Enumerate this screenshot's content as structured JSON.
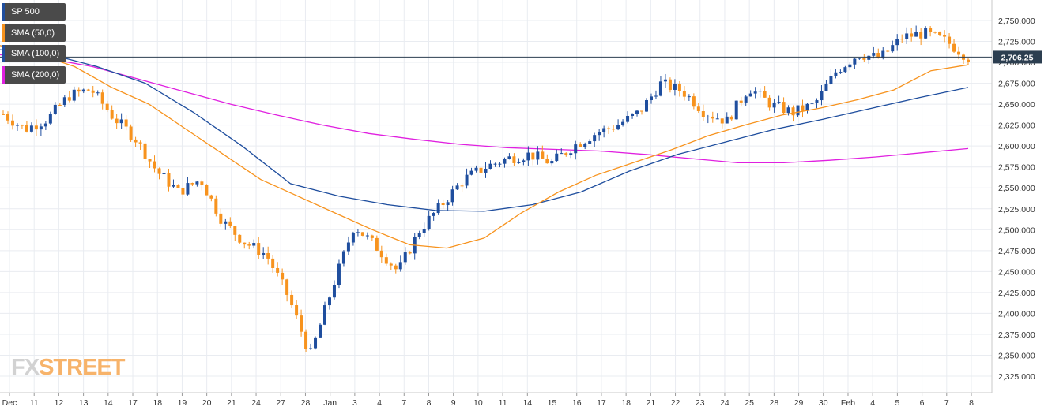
{
  "legend": [
    {
      "label": "SP 500",
      "color": "#1f4e9e"
    },
    {
      "label": "SMA (50,0)",
      "color": "#f7931e"
    },
    {
      "label": "SMA (100,0)",
      "color": "#1f4e9e"
    },
    {
      "label": "SMA (200,0)",
      "color": "#e020e0"
    }
  ],
  "watermark": {
    "part1": "FX",
    "part2": "STREET"
  },
  "colors": {
    "up": "#1f4e9e",
    "down": "#f7931e",
    "sma50": "#f7931e",
    "sma100": "#1f4e9e",
    "sma200": "#e020e0",
    "grid": "#e9ecf1",
    "axis_text": "#333333",
    "price_tag_bg": "#2c3e50"
  },
  "chart_data": {
    "type": "candlestick",
    "title": "SP 500",
    "ylim": [
      2315,
      2760
    ],
    "y_ticks": [
      "2,325.000",
      "2,350.000",
      "2,375.000",
      "2,400.000",
      "2,425.000",
      "2,450.000",
      "2,475.000",
      "2,500.000",
      "2,525.000",
      "2,550.000",
      "2,575.000",
      "2,600.000",
      "2,625.000",
      "2,650.000",
      "2,675.000",
      "2,700.000",
      "2,725.000",
      "2,750.000"
    ],
    "x_ticks": [
      "Dec",
      "11",
      "12",
      "13",
      "14",
      "17",
      "18",
      "19",
      "20",
      "21",
      "24",
      "27",
      "28",
      "Jan",
      "3",
      "4",
      "7",
      "8",
      "9",
      "10",
      "11",
      "14",
      "15",
      "16",
      "17",
      "18",
      "21",
      "22",
      "23",
      "24",
      "25",
      "28",
      "29",
      "30",
      "Feb",
      "4",
      "5",
      "6",
      "7",
      "8"
    ],
    "current_price": {
      "label": "2,706.25",
      "value": 2706.25
    },
    "candle_daily_closes": [
      2638,
      2620,
      2632,
      2660,
      2668,
      2635,
      2610,
      2570,
      2545,
      2560,
      2510,
      2485,
      2470,
      2420,
      2350,
      2430,
      2505,
      2480,
      2450,
      2500,
      2530,
      2560,
      2575,
      2585,
      2590,
      2580,
      2600,
      2615,
      2625,
      2640,
      2675,
      2665,
      2640,
      2630,
      2670,
      2650,
      2640,
      2650,
      2690,
      2710,
      2705,
      2730,
      2735,
      2725,
      2706
    ],
    "sma50": [
      2720,
      2710,
      2695,
      2670,
      2650,
      2620,
      2590,
      2560,
      2540,
      2520,
      2500,
      2482,
      2478,
      2490,
      2520,
      2545,
      2565,
      2580,
      2595,
      2612,
      2625,
      2637,
      2645,
      2655,
      2667,
      2690,
      2697
    ],
    "sma100": [
      2715,
      2710,
      2695,
      2675,
      2640,
      2600,
      2555,
      2540,
      2530,
      2523,
      2522,
      2530,
      2545,
      2570,
      2590,
      2605,
      2620,
      2632,
      2645,
      2658,
      2670
    ],
    "sma200": [
      2709,
      2705,
      2695,
      2680,
      2665,
      2650,
      2637,
      2625,
      2615,
      2608,
      2602,
      2598,
      2596,
      2594,
      2590,
      2585,
      2580,
      2580,
      2583,
      2587,
      2592,
      2597
    ]
  }
}
